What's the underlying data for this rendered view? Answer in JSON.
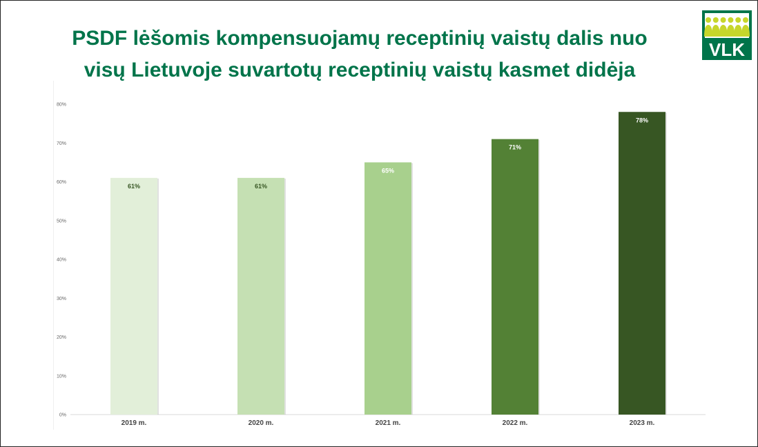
{
  "title": {
    "line1": "PSDF lėšomis kompensuojamų receptinių vaistų dalis nuo",
    "line2": "visų Lietuvoje suvartotų receptinių vaistų kasmet didėja"
  },
  "logo": {
    "text": "VLK",
    "colors": {
      "green": "#00744a",
      "lime": "#c7d62b"
    }
  },
  "chart_data": {
    "type": "bar",
    "categories": [
      "2019 m.",
      "2020 m.",
      "2021 m.",
      "2022 m.",
      "2023 m."
    ],
    "values": [
      61,
      61,
      65,
      71,
      78
    ],
    "data_labels": [
      "61%",
      "61%",
      "65%",
      "71%",
      "78%"
    ],
    "bar_colors": [
      "#e2efd9",
      "#c5e0b3",
      "#a8d08d",
      "#538135",
      "#375623"
    ],
    "label_colors": [
      "#375623",
      "#375623",
      "#ffffff",
      "#ffffff",
      "#ffffff"
    ],
    "yticks": [
      "0%",
      "10%",
      "20%",
      "30%",
      "40%",
      "50%",
      "60%",
      "70%",
      "80%"
    ],
    "ylim": [
      0,
      80
    ],
    "grid": false,
    "xlabel": "",
    "ylabel": ""
  }
}
